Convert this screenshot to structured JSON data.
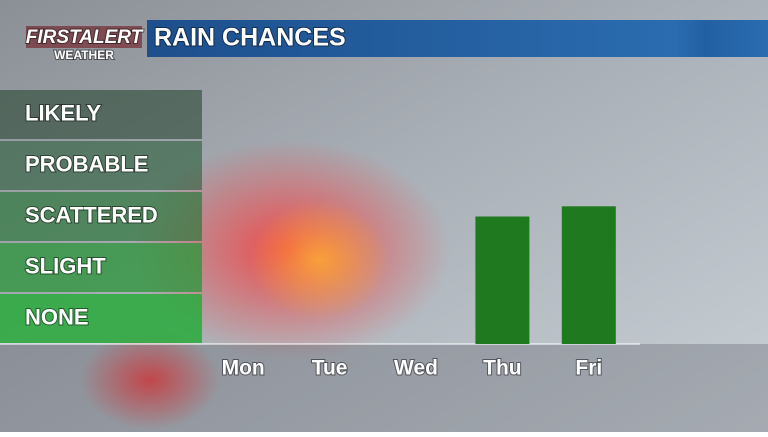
{
  "logo": {
    "name": "FIRSTALERT",
    "sub": "WEATHER"
  },
  "chart_data": {
    "type": "bar",
    "title": "RAIN CHANCES",
    "categories": [
      "Mon",
      "Tue",
      "Wed",
      "Thu",
      "Fri"
    ],
    "values": [
      0,
      0,
      0,
      2.5,
      2.7
    ],
    "color": "#1f7a1f",
    "ylim": [
      0,
      5
    ],
    "yticks": [
      {
        "value": 0.5,
        "label": "NONE"
      },
      {
        "value": 1.5,
        "label": "SLIGHT"
      },
      {
        "value": 2.5,
        "label": "SCATTERED"
      },
      {
        "value": 3.5,
        "label": "PROBABLE"
      },
      {
        "value": 4.5,
        "label": "LIKELY"
      }
    ]
  }
}
